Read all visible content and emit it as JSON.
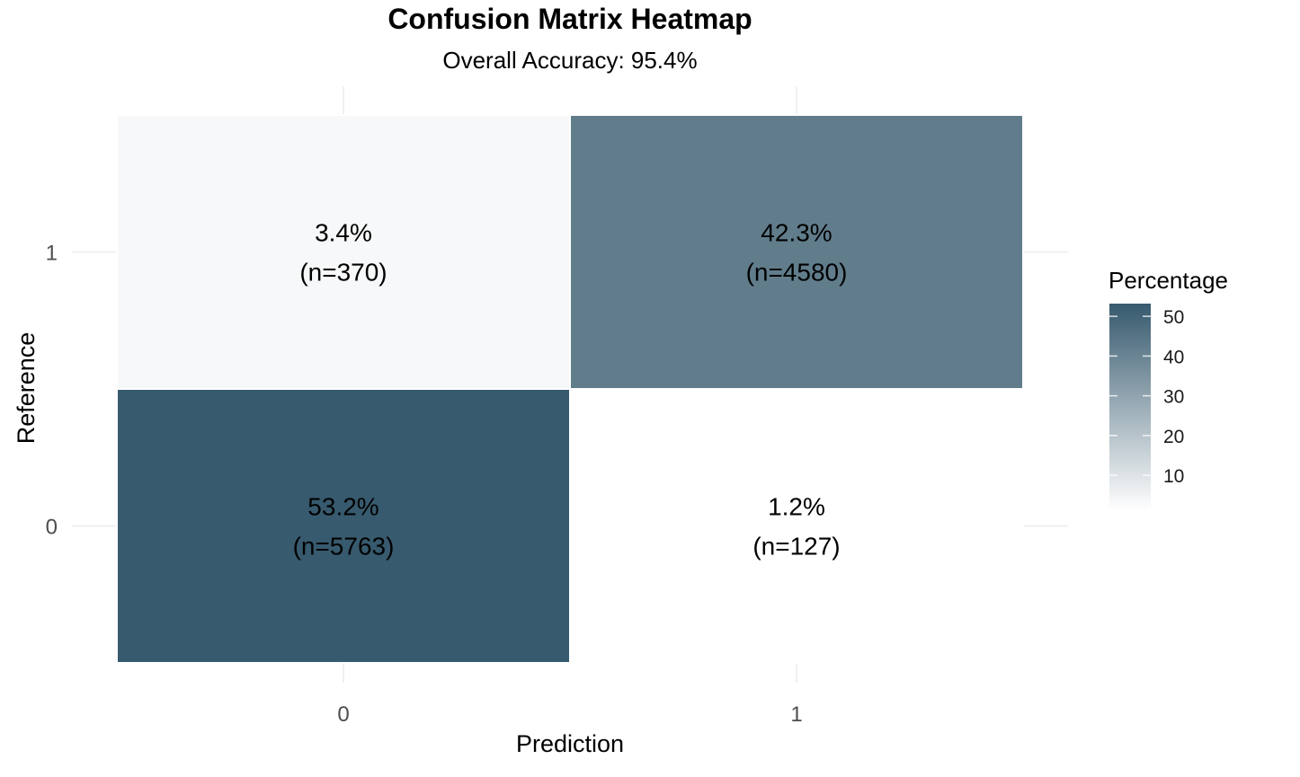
{
  "chart_data": {
    "type": "heatmap",
    "title": "Confusion Matrix Heatmap",
    "subtitle": "Overall Accuracy: 95.4%",
    "xlabel": "Prediction",
    "ylabel": "Reference",
    "x_categories": [
      "0",
      "1"
    ],
    "y_categories": [
      "0",
      "1"
    ],
    "cells": [
      {
        "prediction": "0",
        "reference": "1",
        "percent": 3.4,
        "n": 370,
        "pct_label": "3.4%",
        "n_label": "(n=370)"
      },
      {
        "prediction": "1",
        "reference": "1",
        "percent": 42.3,
        "n": 4580,
        "pct_label": "42.3%",
        "n_label": "(n=4580)"
      },
      {
        "prediction": "0",
        "reference": "0",
        "percent": 53.2,
        "n": 5763,
        "pct_label": "53.2%",
        "n_label": "(n=5763)"
      },
      {
        "prediction": "1",
        "reference": "0",
        "percent": 1.2,
        "n": 127,
        "pct_label": "1.2%",
        "n_label": "(n=127)"
      }
    ],
    "legend": {
      "title": "Percentage",
      "ticks": [
        "10",
        "20",
        "30",
        "40",
        "50"
      ],
      "range": [
        1.2,
        53.2
      ],
      "low_color": "#ffffff",
      "high_color": "#375a6e",
      "position": "right"
    },
    "grid": true
  }
}
